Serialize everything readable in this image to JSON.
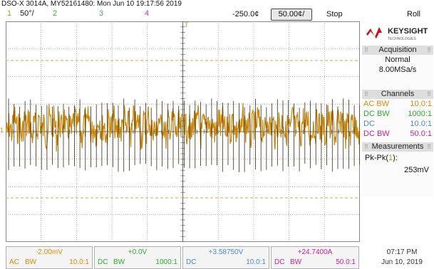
{
  "header": {
    "title": "DSO-X 3014A, MY52161480: Mon Jun 10 19:17:56 2019",
    "ch1_num": "1",
    "ch1_scale": "50°/",
    "ch2_num": "2",
    "ch3_num": "3",
    "ch4_num": "4",
    "delay": "-250.0¢",
    "timebase": "50.00¢/",
    "run_state": "Stop",
    "mode": "Roll"
  },
  "logo": {
    "brand": "KEYSIGHT",
    "tagline": "TECHNOLOGIES"
  },
  "acquisition": {
    "title": "Acquisition",
    "mode": "Normal",
    "rate": "8.00MSa/s"
  },
  "channels": {
    "title": "Channels",
    "rows": [
      {
        "coupling": "AC BW",
        "probe": "10.0:1",
        "color": "#e08a00"
      },
      {
        "coupling": "DC BW",
        "probe": "1000:1",
        "color": "#2fa82f"
      },
      {
        "coupling": "DC",
        "probe": "10.0:1",
        "color": "#4a86d8"
      },
      {
        "coupling": "DC BW",
        "probe": "50.0:1",
        "color": "#d21d8c"
      }
    ]
  },
  "measurements": {
    "title": "Measurements",
    "label": "Pk-Pk(",
    "channel": "1",
    "label_end": "):",
    "value": "253mV"
  },
  "bottom": {
    "cells": [
      {
        "value": "-2.00mV",
        "a": "AC",
        "b": "BW",
        "probe": "10.0:1",
        "color": "#e08a00"
      },
      {
        "value": "+0.0V",
        "a": "DC",
        "b": "BW",
        "probe": "1000:1",
        "color": "#2fa82f"
      },
      {
        "value": "+3.58750V",
        "a": "DC",
        "b": "",
        "probe": "10.0:1",
        "color": "#4a86d8"
      },
      {
        "value": "+24.7400A",
        "a": "DC",
        "b": "BW",
        "probe": "50.0:1",
        "color": "#d21d8c"
      }
    ]
  },
  "clock": {
    "time": "07:17 PM",
    "date": "Jun 10, 2019"
  },
  "markers": {
    "ground_marker": "1",
    "trigger_marker": "T"
  },
  "colors": {
    "ch1": "#c8860a",
    "grid": "#9a9a9a",
    "trigger_level": "#e0a040"
  }
}
